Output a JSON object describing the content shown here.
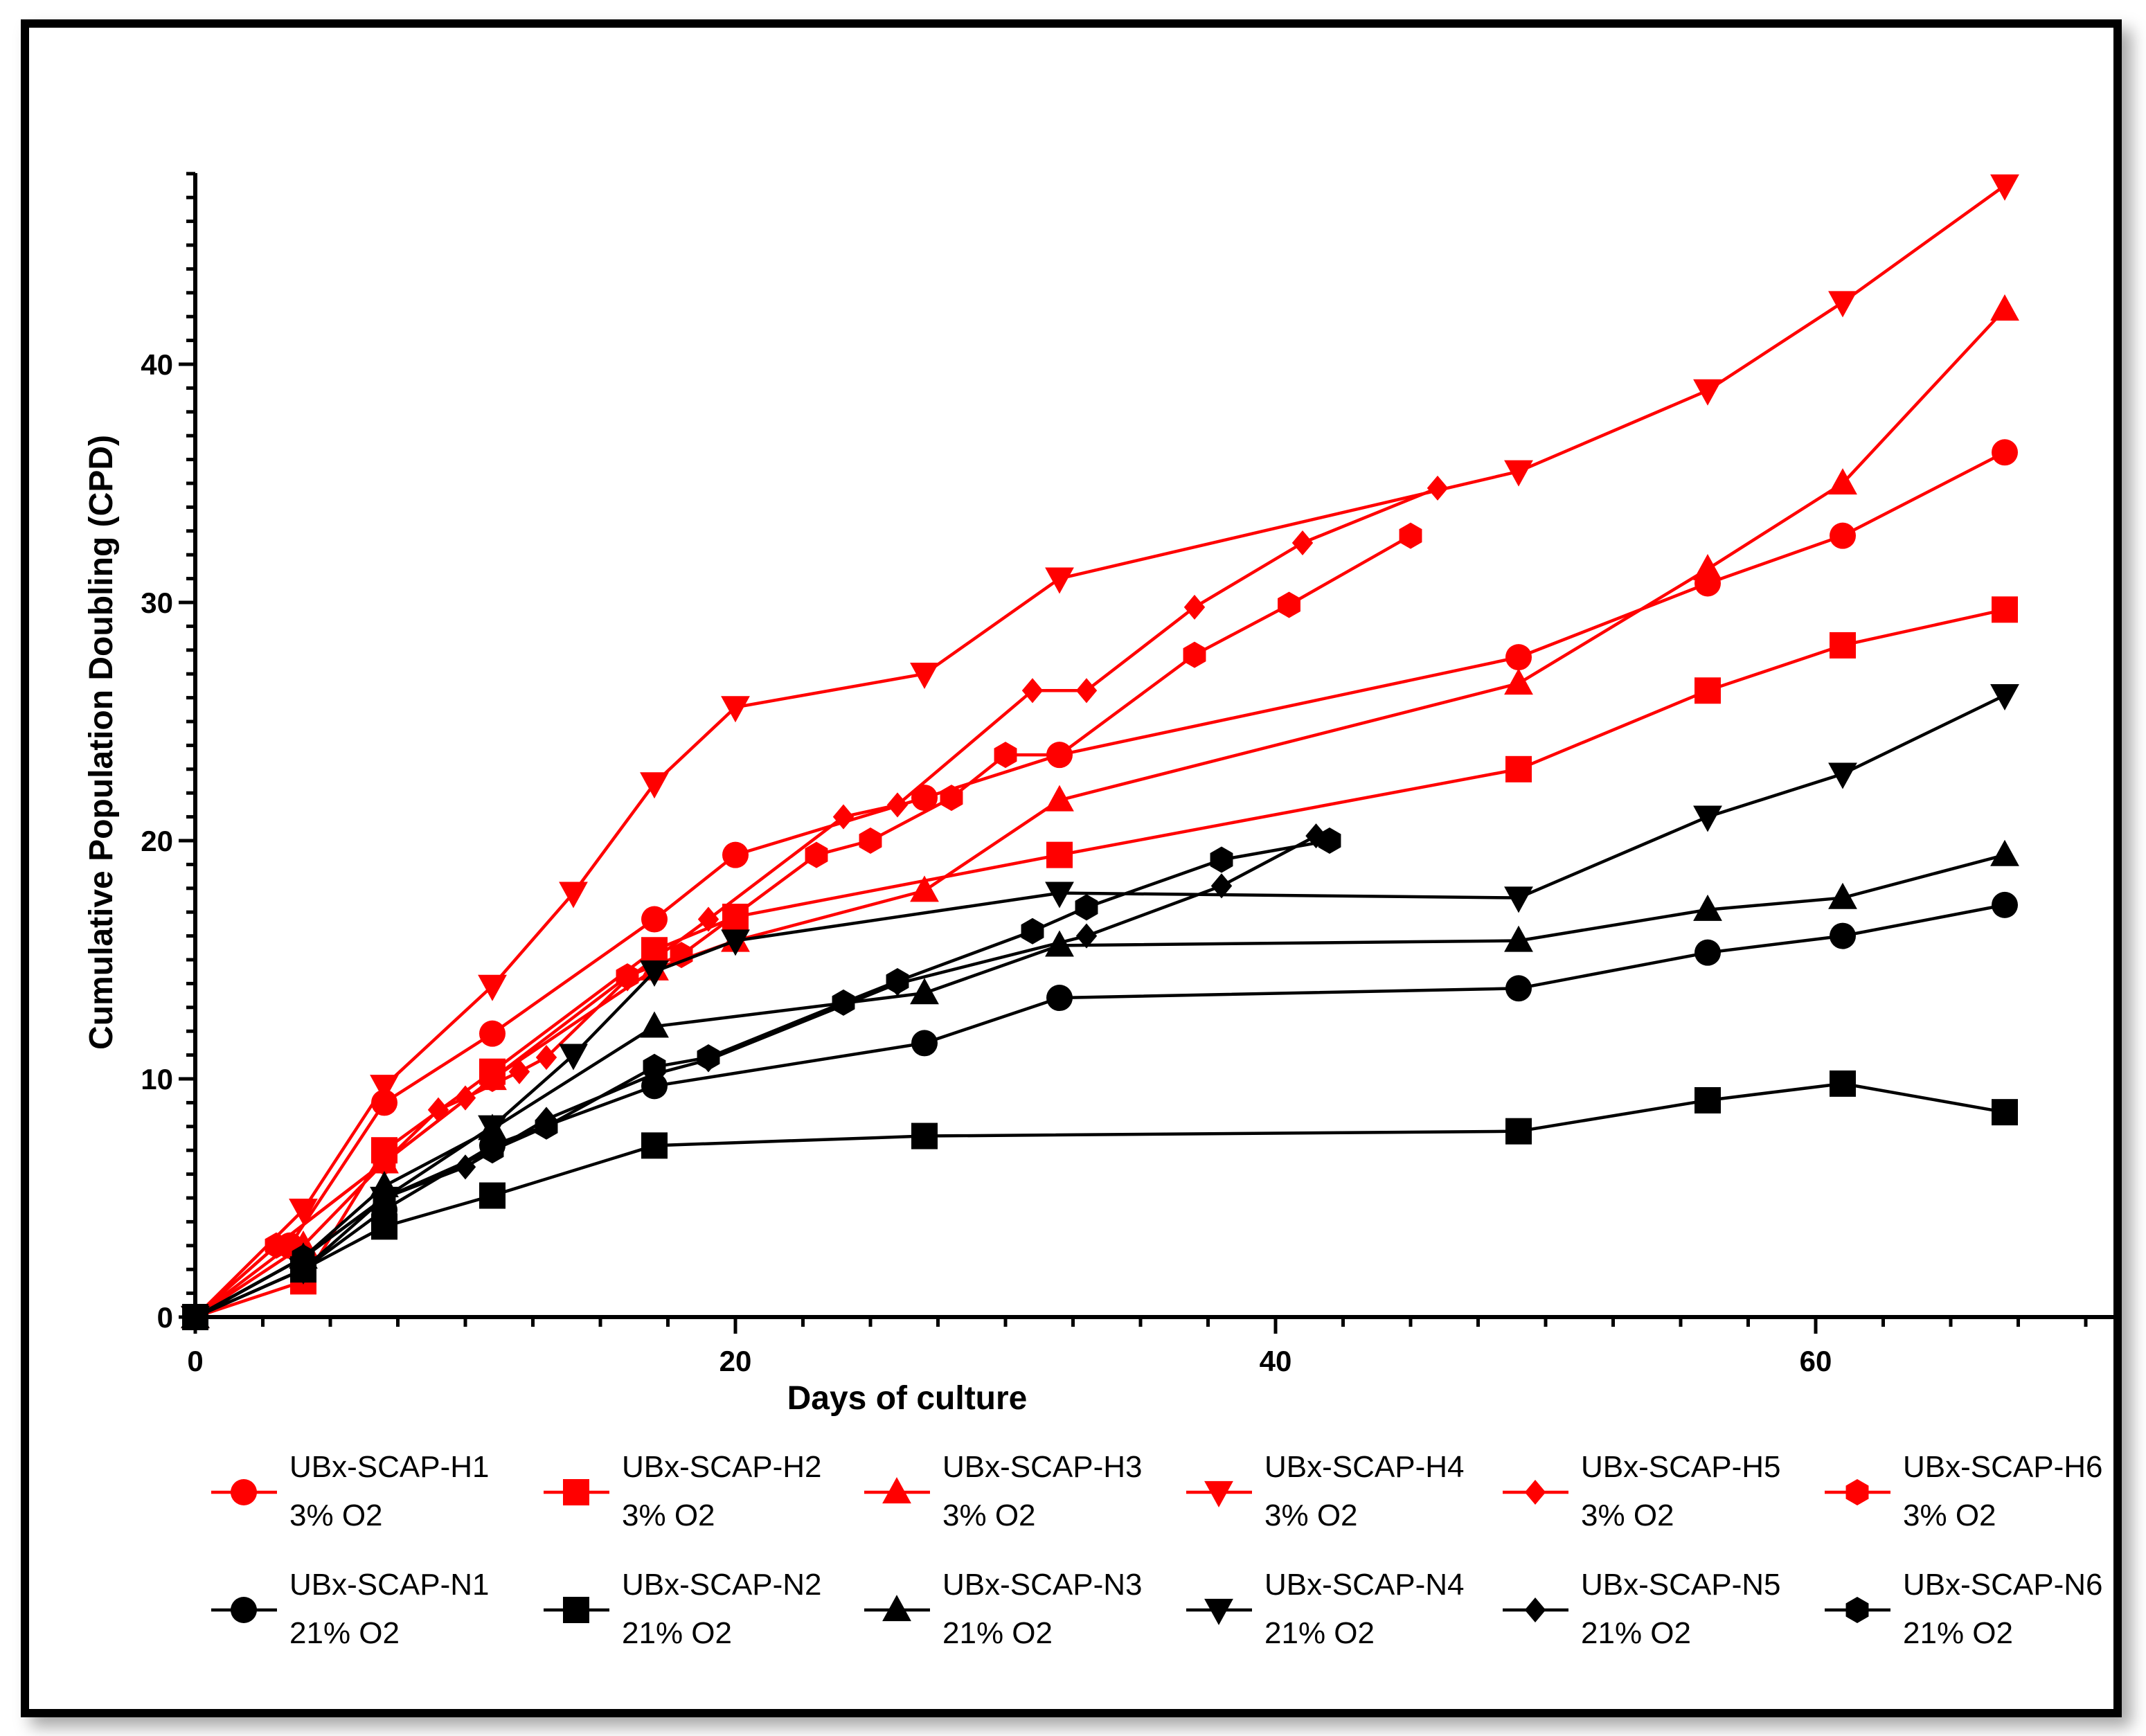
{
  "chart_data": {
    "type": "line",
    "title": "",
    "xlabel": "Days of culture",
    "ylabel": "Cumulative Population Doubling (CPD)",
    "xlim": [
      0,
      70
    ],
    "ylim": [
      0,
      48
    ],
    "xticks": [
      0,
      20,
      40,
      60
    ],
    "yticks": [
      0,
      10,
      20,
      30,
      40
    ],
    "xtick_labels": [
      "0",
      "20",
      "40",
      "60"
    ],
    "ytick_labels": [
      "0",
      "10",
      "20",
      "30",
      "40"
    ],
    "legend_position": "bottom",
    "series": [
      {
        "name": "UBx-SCAP-H1",
        "condition": "3% O2",
        "color": "#ff0000",
        "marker": "circle",
        "x": [
          0,
          3.5,
          7,
          11,
          17,
          20,
          27,
          32,
          49,
          56,
          61,
          67
        ],
        "y": [
          0,
          3,
          9,
          11.9,
          16.7,
          19.4,
          21.8,
          23.6,
          27.7,
          30.8,
          32.8,
          36.3
        ]
      },
      {
        "name": "UBx-SCAP-H2",
        "condition": "3% O2",
        "color": "#ff0000",
        "marker": "square",
        "x": [
          0,
          4,
          7,
          11,
          17,
          20,
          32,
          49,
          56,
          61,
          67
        ],
        "y": [
          0,
          1.5,
          7,
          10.3,
          15.4,
          16.8,
          19.4,
          23,
          26.3,
          28.2,
          29.7
        ]
      },
      {
        "name": "UBx-SCAP-H3",
        "condition": "3% O2",
        "color": "#ff0000",
        "marker": "triangle-up",
        "x": [
          0,
          4,
          7,
          11,
          17,
          20,
          27,
          32,
          49,
          56,
          61,
          67
        ],
        "y": [
          0,
          3,
          6.5,
          10,
          14.6,
          15.8,
          17.9,
          21.7,
          26.6,
          31.4,
          35,
          42.3
        ]
      },
      {
        "name": "UBx-SCAP-H4",
        "condition": "3% O2",
        "color": "#ff0000",
        "marker": "triangle-down",
        "x": [
          0,
          4,
          7,
          11,
          14,
          17,
          20,
          27,
          32,
          49,
          56,
          61,
          67
        ],
        "y": [
          0,
          4.5,
          9.7,
          13.9,
          17.8,
          22.4,
          25.6,
          27,
          31,
          35.5,
          38.9,
          42.6,
          47.5
        ]
      },
      {
        "name": "UBx-SCAP-H5",
        "condition": "3% O2",
        "color": "#ff0000",
        "marker": "diamond",
        "x": [
          0,
          3,
          7,
          9,
          10,
          12,
          13,
          16,
          19,
          24,
          26,
          31,
          33,
          37,
          41,
          46
        ],
        "y": [
          0,
          3,
          6.5,
          8.7,
          9.2,
          10.3,
          10.9,
          14.2,
          16.7,
          21,
          21.5,
          26.3,
          26.3,
          29.8,
          32.5,
          34.8
        ]
      },
      {
        "name": "UBx-SCAP-H6",
        "condition": "3% O2",
        "color": "#ff0000",
        "marker": "hexagon",
        "x": [
          0,
          3,
          7,
          11,
          16,
          18,
          23,
          25,
          28,
          30,
          32,
          37,
          40.5,
          45
        ],
        "y": [
          0,
          3,
          6.5,
          10,
          14.3,
          15.2,
          19.4,
          20,
          21.8,
          23.6,
          23.6,
          27.8,
          29.9,
          32.8
        ]
      },
      {
        "name": "UBx-SCAP-N1",
        "condition": "21% O2",
        "color": "#000000",
        "marker": "circle",
        "x": [
          0,
          4,
          7,
          11,
          17,
          27,
          32,
          49,
          56,
          61,
          67
        ],
        "y": [
          0,
          2,
          4.5,
          7.2,
          9.7,
          11.5,
          13.4,
          13.8,
          15.3,
          16,
          17.3
        ]
      },
      {
        "name": "UBx-SCAP-N2",
        "condition": "21% O2",
        "color": "#000000",
        "marker": "square",
        "x": [
          0,
          4,
          7,
          11,
          17,
          27,
          49,
          56,
          61,
          67
        ],
        "y": [
          0,
          2,
          3.8,
          5.1,
          7.2,
          7.6,
          7.8,
          9.1,
          9.8,
          8.6
        ]
      },
      {
        "name": "UBx-SCAP-N3",
        "condition": "21% O2",
        "color": "#000000",
        "marker": "triangle-up",
        "x": [
          0,
          4,
          7,
          11,
          17,
          27,
          32,
          49,
          56,
          61,
          67
        ],
        "y": [
          0,
          2.5,
          5.5,
          7.9,
          12.2,
          13.6,
          15.6,
          15.8,
          17.1,
          17.6,
          19.4
        ]
      },
      {
        "name": "UBx-SCAP-N4",
        "condition": "21% O2",
        "color": "#000000",
        "marker": "triangle-down",
        "x": [
          0,
          4,
          7,
          11,
          14,
          17,
          20,
          32,
          49,
          56,
          61,
          67
        ],
        "y": [
          0,
          2,
          5,
          8,
          11,
          14.5,
          15.8,
          17.8,
          17.6,
          21,
          22.8,
          26.1
        ]
      },
      {
        "name": "UBx-SCAP-N5",
        "condition": "21% O2",
        "color": "#000000",
        "marker": "diamond",
        "x": [
          0,
          4,
          7,
          10,
          13,
          17,
          19,
          26,
          33,
          38,
          41.5
        ],
        "y": [
          0,
          2.5,
          5,
          6.3,
          8.3,
          10.2,
          10.8,
          14,
          16,
          18.1,
          20.2
        ]
      },
      {
        "name": "UBx-SCAP-N6",
        "condition": "21% O2",
        "color": "#000000",
        "marker": "hexagon",
        "x": [
          0,
          4,
          7,
          11,
          13,
          17,
          19,
          24,
          26,
          31,
          33,
          38,
          42
        ],
        "y": [
          0,
          2.5,
          5,
          7,
          8,
          10.5,
          10.9,
          13.2,
          14.1,
          16.2,
          17.2,
          19.2,
          20
        ]
      }
    ]
  }
}
